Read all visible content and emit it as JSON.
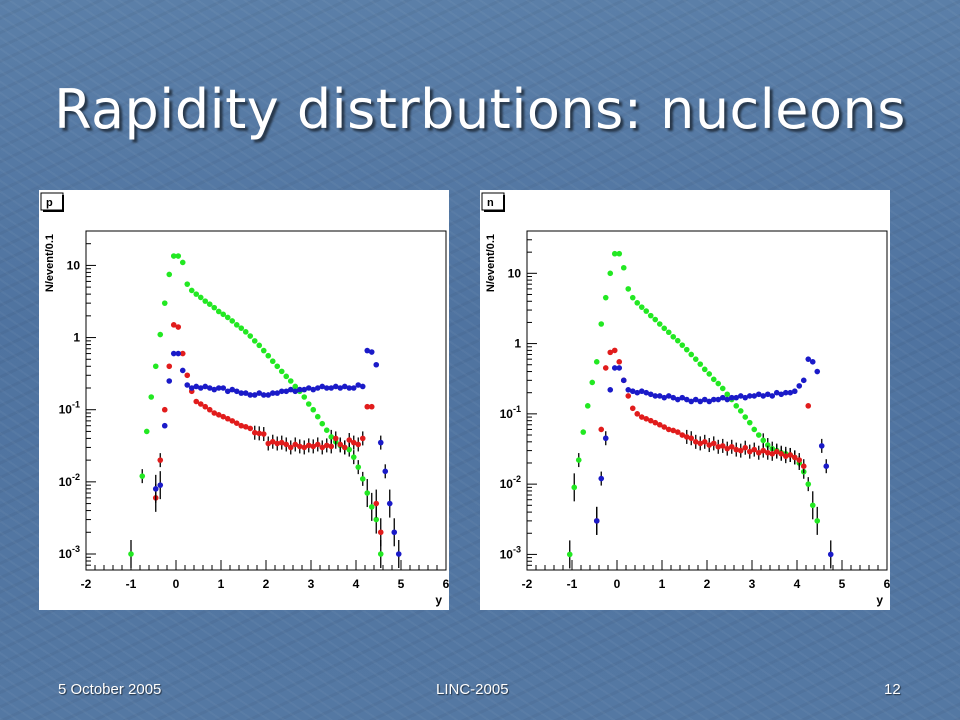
{
  "slide": {
    "title": "Rapidity distrbutions: nucleons",
    "footer_left": "5 October 2005",
    "footer_center": "LINC-2005",
    "footer_right": "12"
  },
  "colors": {
    "green": "#22e822",
    "red": "#e11c1c",
    "blue": "#1a1ac8"
  },
  "chart_data": [
    {
      "type": "scatter",
      "panel_label": "p",
      "xlabel": "y",
      "ylabel": "N/event/0.1",
      "xlim": [
        -2,
        6
      ],
      "ylim": [
        0.0006,
        30
      ],
      "yscale": "log",
      "x_ticks": [
        -2,
        -1,
        0,
        1,
        2,
        3,
        4,
        5,
        6
      ],
      "y_ticks": [
        {
          "value": 0.001,
          "mant": "10",
          "exp": "-3"
        },
        {
          "value": 0.01,
          "mant": "10",
          "exp": "-2"
        },
        {
          "value": 0.1,
          "mant": "10",
          "exp": "-1"
        },
        {
          "value": 1,
          "mant": "1",
          "exp": ""
        },
        {
          "value": 10,
          "mant": "10",
          "exp": ""
        }
      ],
      "series": [
        {
          "color_key": "green",
          "x": [
            -1.0,
            -0.75,
            -0.65,
            -0.55,
            -0.45,
            -0.35,
            -0.25,
            -0.15,
            -0.05,
            0.05,
            0.15,
            0.25,
            0.35,
            0.45,
            0.55,
            0.65,
            0.75,
            0.85,
            0.95,
            1.05,
            1.15,
            1.25,
            1.35,
            1.45,
            1.55,
            1.65,
            1.75,
            1.85,
            1.95,
            2.05,
            2.15,
            2.25,
            2.35,
            2.45,
            2.55,
            2.65,
            2.75,
            2.85,
            2.95,
            3.05,
            3.15,
            3.25,
            3.35,
            3.45,
            3.55,
            3.65,
            3.75,
            3.85,
            3.95,
            4.05,
            4.15,
            4.25,
            4.35,
            4.45,
            4.55
          ],
          "y": [
            0.001,
            0.012,
            0.05,
            0.15,
            0.4,
            1.1,
            3.0,
            7.5,
            13.5,
            13.5,
            11.0,
            5.5,
            4.5,
            4.0,
            3.6,
            3.2,
            2.9,
            2.6,
            2.3,
            2.1,
            1.9,
            1.7,
            1.5,
            1.35,
            1.2,
            1.05,
            0.9,
            0.78,
            0.66,
            0.56,
            0.47,
            0.4,
            0.34,
            0.29,
            0.25,
            0.21,
            0.18,
            0.15,
            0.12,
            0.1,
            0.08,
            0.064,
            0.052,
            0.042,
            0.036,
            0.032,
            0.03,
            0.028,
            0.022,
            0.016,
            0.011,
            0.007,
            0.0045,
            0.003,
            0.001
          ]
        },
        {
          "color_key": "red",
          "x": [
            -0.45,
            -0.35,
            -0.25,
            -0.15,
            -0.05,
            0.05,
            0.15,
            0.25,
            0.35,
            0.45,
            0.55,
            0.65,
            0.75,
            0.85,
            0.95,
            1.05,
            1.15,
            1.25,
            1.35,
            1.45,
            1.55,
            1.65,
            1.75,
            1.85,
            1.95,
            2.05,
            2.15,
            2.25,
            2.35,
            2.45,
            2.55,
            2.65,
            2.75,
            2.85,
            2.95,
            3.05,
            3.15,
            3.25,
            3.35,
            3.45,
            3.55,
            3.65,
            3.75,
            3.85,
            3.95,
            4.05,
            4.15,
            4.25,
            4.35,
            4.45,
            4.55
          ],
          "y": [
            0.006,
            0.02,
            0.1,
            0.4,
            1.5,
            1.4,
            0.6,
            0.3,
            0.18,
            0.13,
            0.12,
            0.11,
            0.1,
            0.09,
            0.085,
            0.08,
            0.075,
            0.07,
            0.065,
            0.06,
            0.058,
            0.055,
            0.048,
            0.047,
            0.046,
            0.034,
            0.036,
            0.034,
            0.035,
            0.033,
            0.03,
            0.033,
            0.031,
            0.03,
            0.032,
            0.031,
            0.033,
            0.03,
            0.032,
            0.031,
            0.04,
            0.033,
            0.03,
            0.038,
            0.035,
            0.033,
            0.04,
            0.11,
            0.11,
            0.005,
            0.002
          ]
        },
        {
          "color_key": "blue",
          "x": [
            -0.45,
            -0.35,
            -0.25,
            -0.15,
            -0.05,
            0.05,
            0.15,
            0.25,
            0.35,
            0.45,
            0.55,
            0.65,
            0.75,
            0.85,
            0.95,
            1.05,
            1.15,
            1.25,
            1.35,
            1.45,
            1.55,
            1.65,
            1.75,
            1.85,
            1.95,
            2.05,
            2.15,
            2.25,
            2.35,
            2.45,
            2.55,
            2.65,
            2.75,
            2.85,
            2.95,
            3.05,
            3.15,
            3.25,
            3.35,
            3.45,
            3.55,
            3.65,
            3.75,
            3.85,
            3.95,
            4.05,
            4.15,
            4.25,
            4.35,
            4.45,
            4.55,
            4.65,
            4.75,
            4.85,
            4.95
          ],
          "y": [
            0.008,
            0.009,
            0.06,
            0.25,
            0.6,
            0.6,
            0.35,
            0.22,
            0.2,
            0.21,
            0.2,
            0.21,
            0.2,
            0.19,
            0.2,
            0.2,
            0.18,
            0.19,
            0.18,
            0.17,
            0.17,
            0.16,
            0.16,
            0.17,
            0.16,
            0.16,
            0.17,
            0.17,
            0.18,
            0.18,
            0.19,
            0.18,
            0.19,
            0.19,
            0.2,
            0.19,
            0.2,
            0.21,
            0.2,
            0.2,
            0.21,
            0.2,
            0.21,
            0.2,
            0.2,
            0.22,
            0.21,
            0.66,
            0.63,
            0.42,
            0.035,
            0.014,
            0.005,
            0.002,
            0.001
          ]
        }
      ]
    },
    {
      "type": "scatter",
      "panel_label": "n",
      "xlabel": "y",
      "ylabel": "N/event/0.1",
      "xlim": [
        -2,
        6
      ],
      "ylim": [
        0.0006,
        40
      ],
      "yscale": "log",
      "x_ticks": [
        -2,
        -1,
        0,
        1,
        2,
        3,
        4,
        5,
        6
      ],
      "y_ticks": [
        {
          "value": 0.001,
          "mant": "10",
          "exp": "-3"
        },
        {
          "value": 0.01,
          "mant": "10",
          "exp": "-2"
        },
        {
          "value": 0.1,
          "mant": "10",
          "exp": "-1"
        },
        {
          "value": 1,
          "mant": "1",
          "exp": ""
        },
        {
          "value": 10,
          "mant": "10",
          "exp": ""
        }
      ],
      "series": [
        {
          "color_key": "green",
          "x": [
            -1.05,
            -0.95,
            -0.85,
            -0.75,
            -0.65,
            -0.55,
            -0.45,
            -0.35,
            -0.25,
            -0.15,
            -0.05,
            0.05,
            0.15,
            0.25,
            0.35,
            0.45,
            0.55,
            0.65,
            0.75,
            0.85,
            0.95,
            1.05,
            1.15,
            1.25,
            1.35,
            1.45,
            1.55,
            1.65,
            1.75,
            1.85,
            1.95,
            2.05,
            2.15,
            2.25,
            2.35,
            2.45,
            2.55,
            2.65,
            2.75,
            2.85,
            2.95,
            3.05,
            3.15,
            3.25,
            3.35,
            3.45,
            3.55,
            3.65,
            3.75,
            3.85,
            3.95,
            4.05,
            4.15,
            4.25,
            4.35,
            4.45
          ],
          "y": [
            0.001,
            0.009,
            0.022,
            0.055,
            0.13,
            0.28,
            0.55,
            1.9,
            4.5,
            10,
            19,
            19,
            12,
            6,
            4.5,
            3.8,
            3.3,
            2.9,
            2.5,
            2.2,
            1.9,
            1.65,
            1.45,
            1.25,
            1.1,
            0.95,
            0.82,
            0.7,
            0.6,
            0.51,
            0.43,
            0.37,
            0.31,
            0.27,
            0.23,
            0.19,
            0.16,
            0.13,
            0.11,
            0.09,
            0.075,
            0.06,
            0.05,
            0.042,
            0.036,
            0.032,
            0.03,
            0.028,
            0.027,
            0.026,
            0.024,
            0.02,
            0.015,
            0.01,
            0.005,
            0.003
          ]
        },
        {
          "color_key": "red",
          "x": [
            -0.45,
            -0.35,
            -0.25,
            -0.15,
            -0.05,
            0.05,
            0.15,
            0.25,
            0.35,
            0.45,
            0.55,
            0.65,
            0.75,
            0.85,
            0.95,
            1.05,
            1.15,
            1.25,
            1.35,
            1.45,
            1.55,
            1.65,
            1.75,
            1.85,
            1.95,
            2.05,
            2.15,
            2.25,
            2.35,
            2.45,
            2.55,
            2.65,
            2.75,
            2.85,
            2.95,
            3.05,
            3.15,
            3.25,
            3.35,
            3.45,
            3.55,
            3.65,
            3.75,
            3.85,
            3.95,
            4.05,
            4.15,
            4.25
          ],
          "y": [
            0.003,
            0.06,
            0.45,
            0.75,
            0.8,
            0.55,
            0.3,
            0.18,
            0.12,
            0.1,
            0.09,
            0.085,
            0.08,
            0.075,
            0.07,
            0.065,
            0.06,
            0.058,
            0.055,
            0.05,
            0.047,
            0.045,
            0.04,
            0.038,
            0.04,
            0.036,
            0.038,
            0.034,
            0.035,
            0.032,
            0.034,
            0.031,
            0.03,
            0.033,
            0.029,
            0.031,
            0.028,
            0.03,
            0.028,
            0.027,
            0.029,
            0.027,
            0.025,
            0.026,
            0.024,
            0.022,
            0.018,
            0.13
          ]
        },
        {
          "color_key": "blue",
          "x": [
            -0.45,
            -0.35,
            -0.25,
            -0.15,
            -0.05,
            0.05,
            0.15,
            0.25,
            0.35,
            0.45,
            0.55,
            0.65,
            0.75,
            0.85,
            0.95,
            1.05,
            1.15,
            1.25,
            1.35,
            1.45,
            1.55,
            1.65,
            1.75,
            1.85,
            1.95,
            2.05,
            2.15,
            2.25,
            2.35,
            2.45,
            2.55,
            2.65,
            2.75,
            2.85,
            2.95,
            3.05,
            3.15,
            3.25,
            3.35,
            3.45,
            3.55,
            3.65,
            3.75,
            3.85,
            3.95,
            4.05,
            4.15,
            4.25,
            4.35,
            4.45,
            4.55,
            4.65,
            4.75
          ],
          "y": [
            0.003,
            0.012,
            0.045,
            0.22,
            0.45,
            0.45,
            0.3,
            0.22,
            0.21,
            0.2,
            0.21,
            0.2,
            0.19,
            0.18,
            0.18,
            0.17,
            0.18,
            0.17,
            0.16,
            0.17,
            0.16,
            0.15,
            0.16,
            0.15,
            0.16,
            0.15,
            0.16,
            0.16,
            0.17,
            0.16,
            0.17,
            0.17,
            0.18,
            0.17,
            0.18,
            0.18,
            0.19,
            0.18,
            0.19,
            0.18,
            0.2,
            0.19,
            0.2,
            0.2,
            0.21,
            0.25,
            0.3,
            0.6,
            0.55,
            0.4,
            0.035,
            0.018,
            0.001
          ]
        }
      ]
    }
  ]
}
